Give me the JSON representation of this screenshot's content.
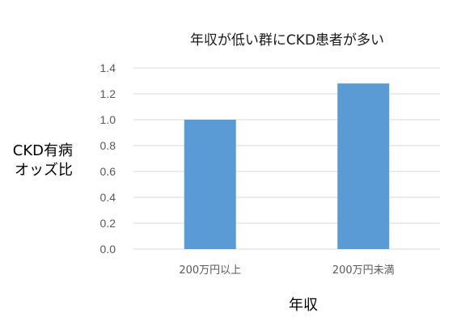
{
  "chart_data": {
    "type": "bar",
    "title": "年収が低い群にCKD患者が多い",
    "xlabel": "年収",
    "ylabel_lines": [
      "CKD有病",
      "オッズ比"
    ],
    "categories": [
      "200万円以上",
      "200万円未満"
    ],
    "values": [
      1.0,
      1.28
    ],
    "ylim": [
      0,
      1.4
    ],
    "yticks": [
      "0.0",
      "0.2",
      "0.4",
      "0.6",
      "0.8",
      "1.0",
      "1.2",
      "1.4"
    ],
    "grid": true,
    "legend": "none",
    "bar_color": "#5b9bd5",
    "grid_color": "#d9d9d9"
  }
}
